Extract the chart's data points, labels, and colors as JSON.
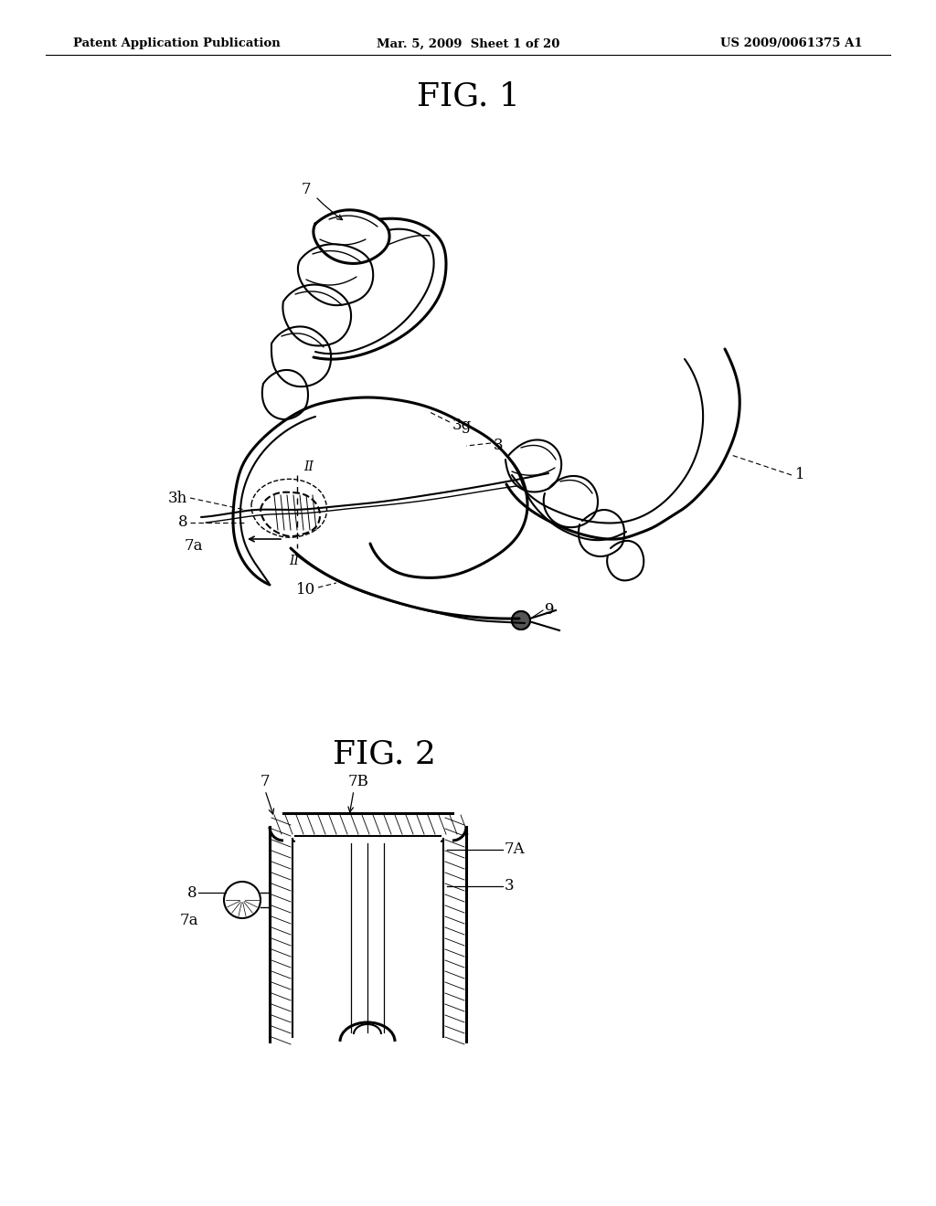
{
  "header_left": "Patent Application Publication",
  "header_mid": "Mar. 5, 2009  Sheet 1 of 20",
  "header_right": "US 2009/0061375 A1",
  "fig1_title": "FIG. 1",
  "fig2_title": "FIG. 2",
  "background_color": "#ffffff"
}
